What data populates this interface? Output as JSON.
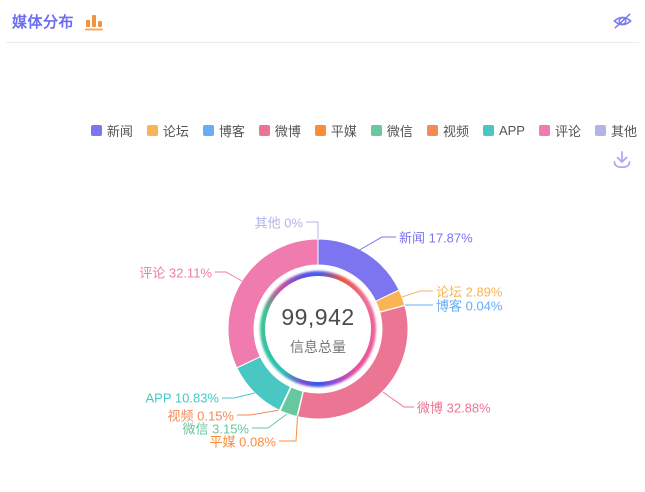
{
  "header": {
    "title": "媒体分布",
    "icons": {
      "chart_switch": "bar-chart-icon",
      "hide": "eye-off-icon"
    }
  },
  "toolbar": {
    "download": "download-icon"
  },
  "chart_data": {
    "type": "pie",
    "subtype": "donut",
    "title": "媒体分布",
    "legend_position": "top-right",
    "center_value_display": "99,942",
    "center_value": 99942,
    "center_label": "信息总量",
    "unit": "percent",
    "series": [
      {
        "name": "新闻",
        "value_pct": 17.87,
        "label": "新闻 17.87%",
        "color": "#7d74f0"
      },
      {
        "name": "论坛",
        "value_pct": 2.89,
        "label": "论坛 2.89%",
        "color": "#f9b455"
      },
      {
        "name": "博客",
        "value_pct": 0.04,
        "label": "博客 0.04%",
        "color": "#66aef7"
      },
      {
        "name": "微博",
        "value_pct": 32.88,
        "label": "微博 32.88%",
        "color": "#ec7593"
      },
      {
        "name": "平媒",
        "value_pct": 0.08,
        "label": "平媒 0.08%",
        "color": "#fd8c39"
      },
      {
        "name": "微信",
        "value_pct": 3.15,
        "label": "微信 3.15%",
        "color": "#67c79e"
      },
      {
        "name": "视频",
        "value_pct": 0.15,
        "label": "视频 0.15%",
        "color": "#f58a54"
      },
      {
        "name": "APP",
        "value_pct": 10.83,
        "label": "APP 10.83%",
        "color": "#49c8c3"
      },
      {
        "name": "评论",
        "value_pct": 32.11,
        "label": "评论 32.11%",
        "color": "#f07bae"
      },
      {
        "name": "其他",
        "value_pct": 0,
        "label": "其他 0%",
        "color": "#b3b3e8"
      }
    ],
    "colors": {
      "title": "#6e6ef2",
      "title_icon": "#f39242",
      "hide_icon": "#7b7bf0",
      "download_icon": "#a8a8f0",
      "center_value_text": "#4b4b4b",
      "center_label_text": "#777777",
      "legend_text": "#545454",
      "divider": "#ebebeb"
    }
  }
}
